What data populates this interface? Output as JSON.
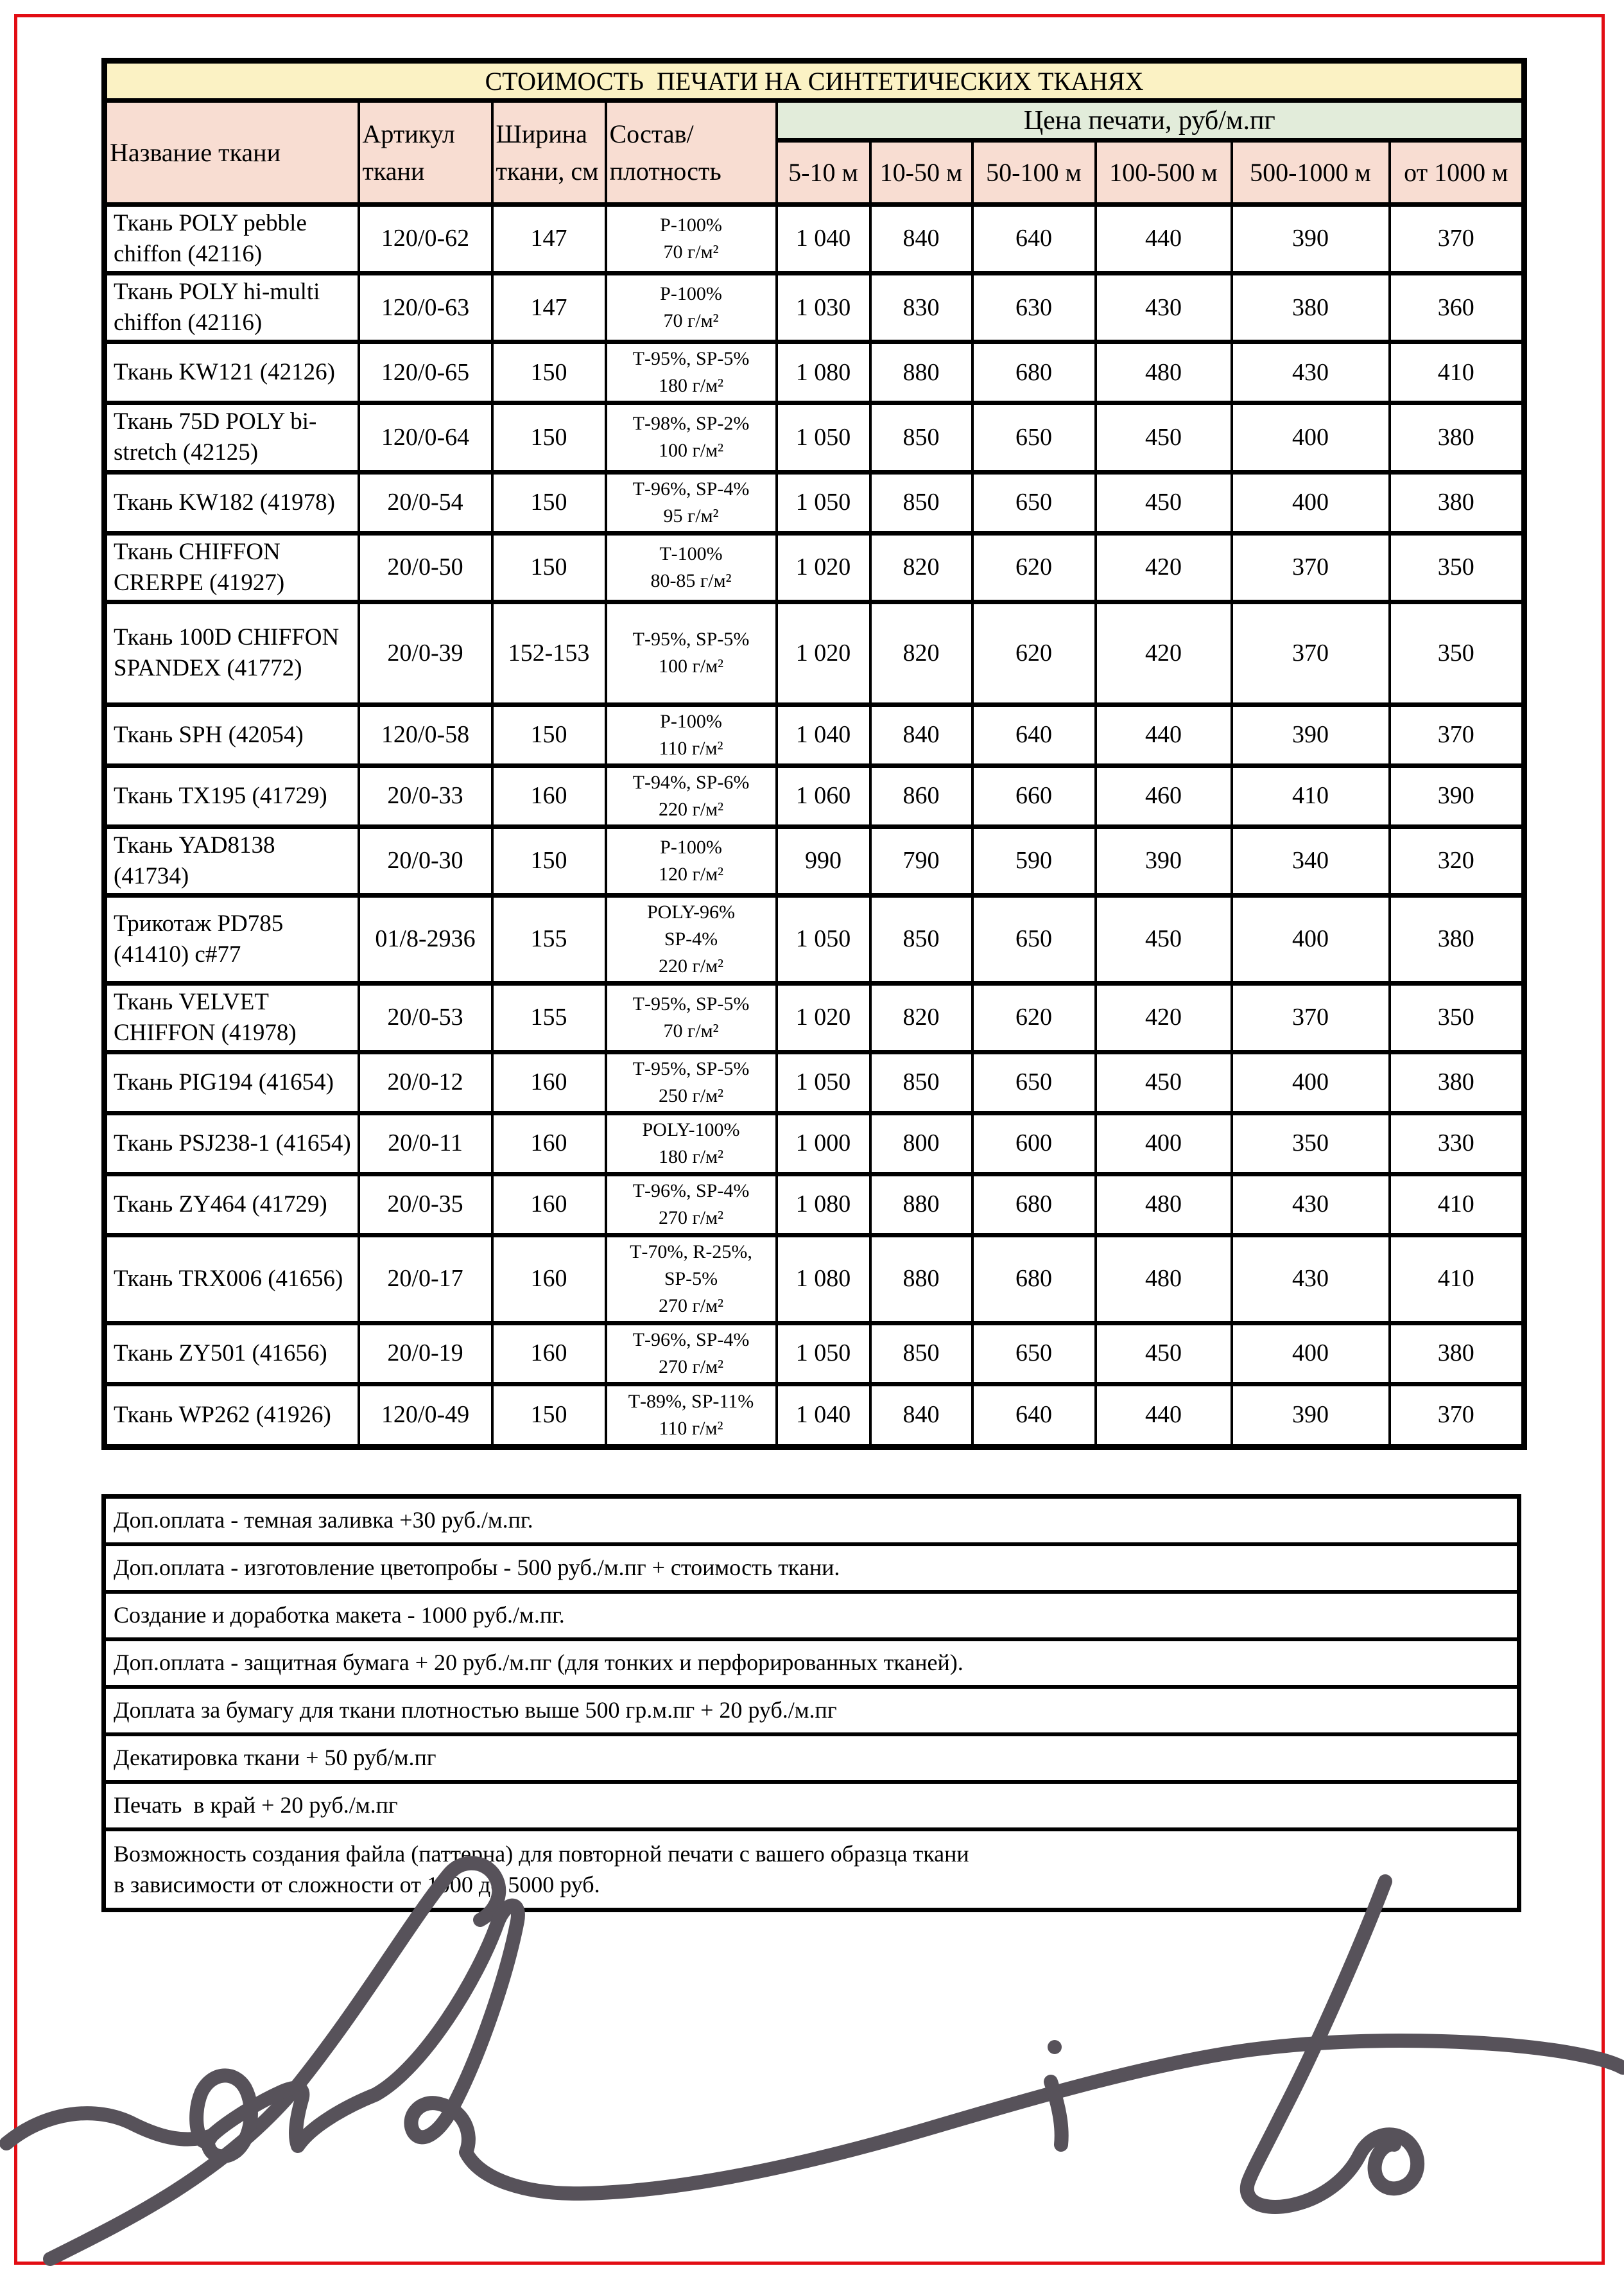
{
  "page": {
    "frame_color": "#e20d14",
    "background": "#ffffff"
  },
  "table": {
    "title": "СТОИМОСТЬ  ПЕЧАТИ НА СИНТЕТИЧЕСКИХ ТКАНЯХ",
    "title_bg": "#fbf2c4",
    "header_bg": "#f8ddd2",
    "price_header_bg": "#e2ecda",
    "columns": {
      "name": "Название ткани",
      "articul": "Артикул ткани",
      "width": "Ширина ткани, см",
      "composition": "Состав/\nплотность",
      "price_group": "Цена печати, руб/м.пг"
    },
    "price_columns": [
      "5-10 м",
      "10-50 м",
      "50-100 м",
      "100-500 м",
      "500-1000 м",
      "от 1000 м"
    ],
    "rows": [
      {
        "name": "Ткань POLY pebble chiffon (42116)",
        "articul": "120/0-62",
        "width": "147",
        "composition": "P-100%\n70 г/м²",
        "prices": [
          "1 040",
          "840",
          "640",
          "440",
          "390",
          "370"
        ]
      },
      {
        "name": "Ткань POLY hi-multi chiffon (42116)",
        "articul": "120/0-63",
        "width": "147",
        "composition": "P-100%\n70 г/м²",
        "prices": [
          "1 030",
          "830",
          "630",
          "430",
          "380",
          "360"
        ]
      },
      {
        "name": "Ткань KW121 (42126)",
        "articul": "120/0-65",
        "width": "150",
        "composition": "Т-95%, SP-5%\n180 г/м²",
        "prices": [
          "1 080",
          "880",
          "680",
          "480",
          "430",
          "410"
        ]
      },
      {
        "name": "Ткань 75D POLY bi-stretch (42125)",
        "articul": "120/0-64",
        "width": "150",
        "composition": "Т-98%, SP-2%\n100 г/м²",
        "prices": [
          "1 050",
          "850",
          "650",
          "450",
          "400",
          "380"
        ]
      },
      {
        "name": "Ткань KW182 (41978)",
        "articul": "20/0-54",
        "width": "150",
        "composition": "Т-96%, SP-4%\n95 г/м²",
        "prices": [
          "1 050",
          "850",
          "650",
          "450",
          "400",
          "380"
        ]
      },
      {
        "name": "Ткань CHIFFON CRERPE (41927)",
        "articul": "20/0-50",
        "width": "150",
        "composition": "Т-100%\n80-85 г/м²",
        "prices": [
          "1 020",
          "820",
          "620",
          "420",
          "370",
          "350"
        ]
      },
      {
        "name": "Ткань 100D CHIFFON SPANDEX (41772)",
        "articul": "20/0-39",
        "width": "152-153",
        "composition": "Т-95%, SP-5%\n100 г/м²",
        "prices": [
          "1 020",
          "820",
          "620",
          "420",
          "370",
          "350"
        ]
      },
      {
        "name": "Ткань SPH (42054)",
        "articul": "120/0-58",
        "width": "150",
        "composition": "P-100%\n110 г/м²",
        "prices": [
          "1 040",
          "840",
          "640",
          "440",
          "390",
          "370"
        ]
      },
      {
        "name": "Ткань TX195 (41729)",
        "articul": "20/0-33",
        "width": "160",
        "composition": "Т-94%, SP-6%\n220 г/м²",
        "prices": [
          "1 060",
          "860",
          "660",
          "460",
          "410",
          "390"
        ]
      },
      {
        "name": "Ткань YAD8138 (41734)",
        "articul": "20/0-30",
        "width": "150",
        "composition": "P-100%\n120 г/м²",
        "prices": [
          "990",
          "790",
          "590",
          "390",
          "340",
          "320"
        ]
      },
      {
        "name": "Трикотаж PD785 (41410) c#77",
        "articul": "01/8-2936",
        "width": "155",
        "composition": "POLY-96%\nSP-4%\n220 г/м²",
        "prices": [
          "1 050",
          "850",
          "650",
          "450",
          "400",
          "380"
        ]
      },
      {
        "name": "Ткань VELVET CHIFFON (41978)",
        "articul": "20/0-53",
        "width": "155",
        "composition": "Т-95%, SP-5%\n70 г/м²",
        "prices": [
          "1 020",
          "820",
          "620",
          "420",
          "370",
          "350"
        ]
      },
      {
        "name": "Ткань PIG194 (41654)",
        "articul": "20/0-12",
        "width": "160",
        "composition": "Т-95%, SP-5%\n250 г/м²",
        "prices": [
          "1 050",
          "850",
          "650",
          "450",
          "400",
          "380"
        ]
      },
      {
        "name": "Ткань PSJ238-1 (41654)",
        "articul": "20/0-11",
        "width": "160",
        "composition": "POLY-100%\n180 г/м²",
        "prices": [
          "1 000",
          "800",
          "600",
          "400",
          "350",
          "330"
        ]
      },
      {
        "name": "Ткань ZY464 (41729)",
        "articul": "20/0-35",
        "width": "160",
        "composition": "Т-96%, SP-4%\n270 г/м²",
        "prices": [
          "1 080",
          "880",
          "680",
          "480",
          "430",
          "410"
        ]
      },
      {
        "name": "Ткань TRX006 (41656)",
        "articul": "20/0-17",
        "width": "160",
        "composition": "Т-70%, R-25%,\nSP-5%\n270 г/м²",
        "prices": [
          "1 080",
          "880",
          "680",
          "480",
          "430",
          "410"
        ]
      },
      {
        "name": "Ткань ZY501 (41656)",
        "articul": "20/0-19",
        "width": "160",
        "composition": "Т-96%, SP-4%\n270 г/м²",
        "prices": [
          "1 050",
          "850",
          "650",
          "450",
          "400",
          "380"
        ]
      },
      {
        "name": "Ткань WP262 (41926)",
        "articul": "120/0-49",
        "width": "150",
        "composition": "Т-89%, SP-11%\n110 г/м²",
        "prices": [
          "1 040",
          "840",
          "640",
          "440",
          "390",
          "370"
        ]
      }
    ]
  },
  "notes": {
    "items": [
      "Доп.оплата - темная заливка +30 руб./м.пг.",
      "Доп.оплата - изготовление цветопробы - 500 руб./м.пг + стоимость ткани.",
      "Создание и доработка макета - 1000 руб./м.пг.",
      "Доп.оплата - защитная бумага + 20 руб./м.пг (для тонких и перфорированных тканей).",
      "Доплата за бумагу для ткани плотностью выше 500 гр.м.пг + 20 руб./м.пг",
      "Декатировка ткани + 50 руб/м.пг",
      "Печать  в край + 20 руб./м.пг",
      "Возможность создания файла (паттерна) для повторной печати с вашего образца ткани\nв зависимости от сложности от 1000 до 5000 руб."
    ]
  },
  "signature": {
    "label": "forbito script logo",
    "color": "#57525a"
  }
}
